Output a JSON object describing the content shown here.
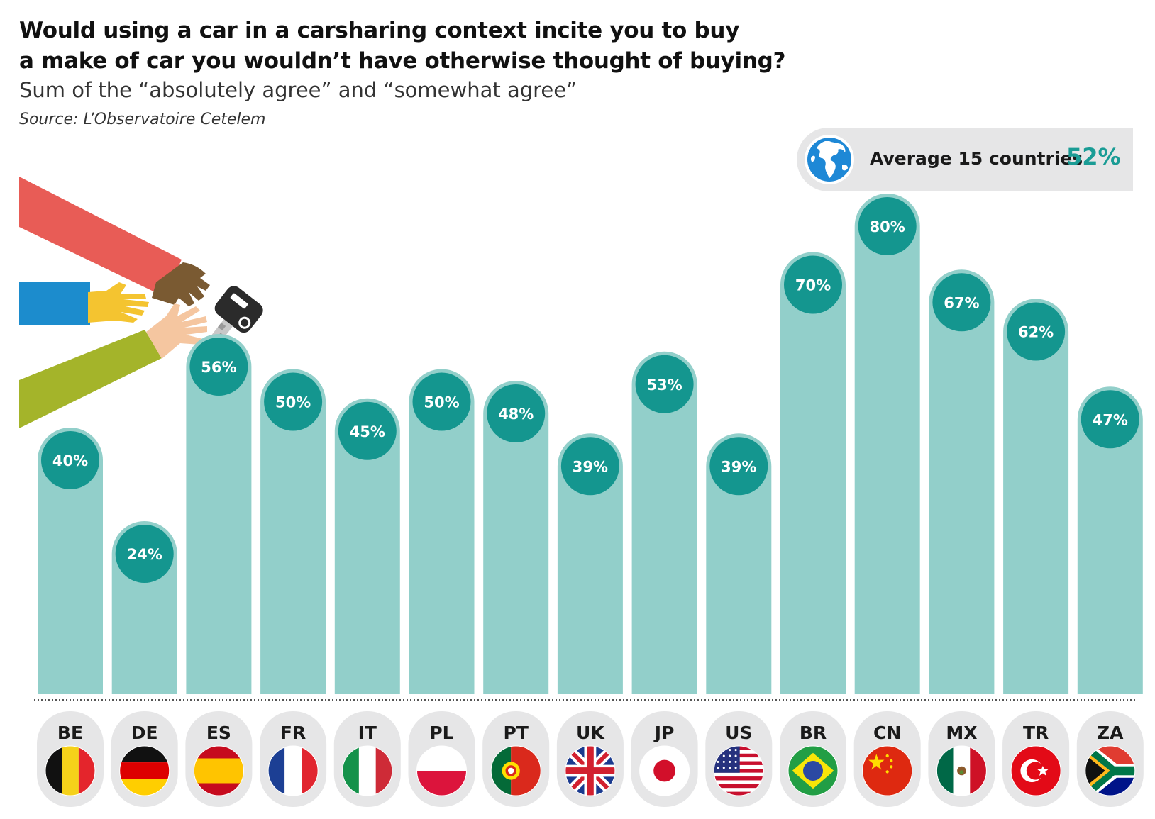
{
  "header": {
    "title_line1": "Would using a car in a carsharing context incite you to buy",
    "title_line2": "a make of car you wouldn’t have otherwise thought of buying?",
    "subtitle": "Sum of the “absolutely agree” and “somewhat agree”",
    "source": "Source: L’Observatoire Cetelem"
  },
  "average": {
    "label": "Average 15 countries",
    "value": "52%",
    "icon": "globe-icon"
  },
  "colors": {
    "bar": "#92cfca",
    "badge": "#14968f",
    "accent": "#1a9c95",
    "pill": "#e6e6e7"
  },
  "illustration": {
    "icon": "hands-reaching-car-key-icon"
  },
  "chart_data": {
    "type": "bar",
    "categories": [
      "BE",
      "DE",
      "ES",
      "FR",
      "IT",
      "PL",
      "PT",
      "UK",
      "JP",
      "US",
      "BR",
      "CN",
      "MX",
      "TR",
      "ZA"
    ],
    "values": [
      40,
      24,
      56,
      50,
      45,
      50,
      48,
      39,
      53,
      39,
      70,
      80,
      67,
      62,
      47
    ],
    "value_labels": [
      "40%",
      "24%",
      "56%",
      "50%",
      "45%",
      "50%",
      "48%",
      "39%",
      "53%",
      "39%",
      "70%",
      "80%",
      "67%",
      "62%",
      "47%"
    ],
    "ylim": [
      0,
      100
    ],
    "grid": false,
    "flags": [
      "flag-be-icon",
      "flag-de-icon",
      "flag-es-icon",
      "flag-fr-icon",
      "flag-it-icon",
      "flag-pl-icon",
      "flag-pt-icon",
      "flag-uk-icon",
      "flag-jp-icon",
      "flag-us-icon",
      "flag-br-icon",
      "flag-cn-icon",
      "flag-mx-icon",
      "flag-tr-icon",
      "flag-za-icon"
    ]
  }
}
